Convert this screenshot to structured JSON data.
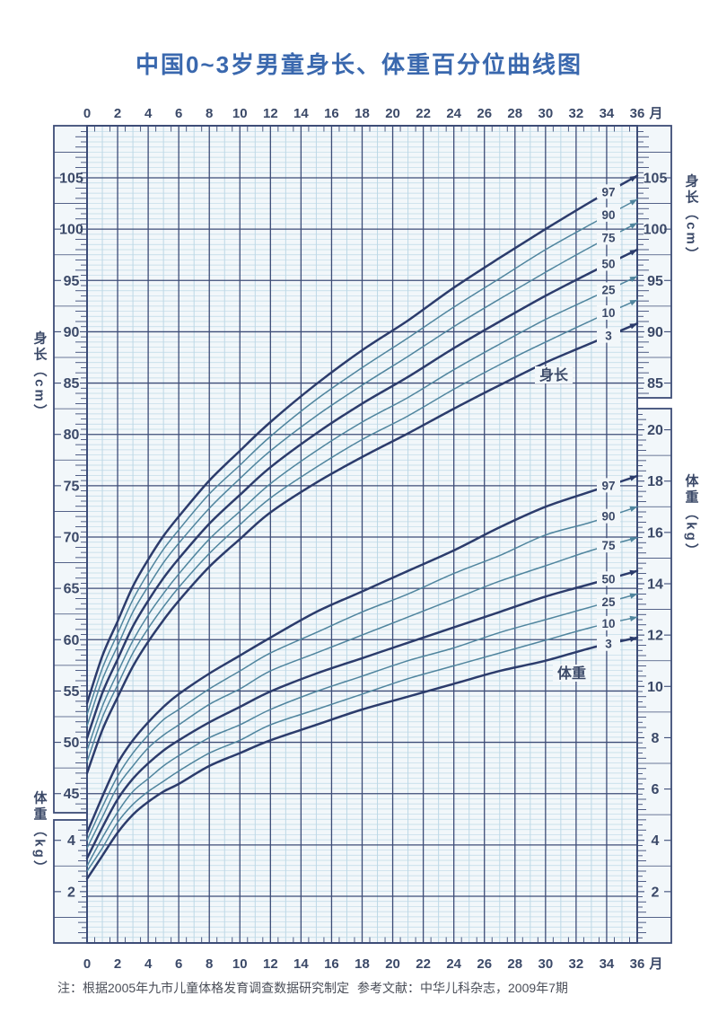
{
  "title": "中国0~3岁男童身长、体重百分位曲线图",
  "month_axis": {
    "ticks": [
      "0",
      "2",
      "4",
      "6",
      "8",
      "10",
      "12",
      "14",
      "16",
      "18",
      "20",
      "22",
      "24",
      "26",
      "28",
      "30",
      "32",
      "34",
      "36"
    ],
    "unit": "月"
  },
  "left_height_axis": {
    "title": "身长（cm）",
    "labels": [
      "105",
      "100",
      "95",
      "90",
      "85",
      "80",
      "75",
      "70",
      "65",
      "60",
      "55",
      "50",
      "45"
    ]
  },
  "left_weight_axis": {
    "title": "体重（kg）",
    "labels": [
      "4",
      "2"
    ]
  },
  "right_height_axis": {
    "title": "身长（cm）",
    "labels": [
      "105",
      "100",
      "95",
      "90",
      "85"
    ]
  },
  "right_weight_axis": {
    "title": "体重（kg）",
    "labels": [
      "20",
      "18",
      "16",
      "14",
      "12",
      "10",
      "8",
      "6",
      "4",
      "2"
    ]
  },
  "percentile_labels": [
    "97",
    "90",
    "75",
    "50",
    "25",
    "10",
    "3"
  ],
  "curve_annotations": {
    "height": "身长",
    "weight": "体重"
  },
  "notes": {
    "source": "注：根据2005年九市儿童体格发育调查数据研究制定",
    "reference": "参考文献：中华儿科杂志，2009年7期"
  },
  "colors": {
    "title": "#3a68ae",
    "text": "#3b4968",
    "footnote": "#4a4e58",
    "plot_bg": "#f2f7fa",
    "grid_fine": "#bdd8e6",
    "grid_major": "#3d4c77",
    "curve_dark": "#2c3c6c",
    "curve_light": "#50859e"
  },
  "chart_data": [
    {
      "type": "line",
      "title": "身长百分位曲线",
      "group": "height",
      "unit": "cm",
      "ylabel": "身长（cm）",
      "xlabel": "月",
      "ylim": [
        43,
        110
      ],
      "x_months": [
        0,
        1,
        2,
        3,
        4,
        5,
        6,
        8,
        10,
        12,
        15,
        18,
        21,
        24,
        27,
        30,
        33,
        36
      ],
      "series": [
        {
          "name": "97",
          "values": [
            53.8,
            58.4,
            61.8,
            65.2,
            67.8,
            70.1,
            72.0,
            75.5,
            78.4,
            81.2,
            84.9,
            88.2,
            91.1,
            94.3,
            97.2,
            100.0,
            102.7,
            105.2
          ]
        },
        {
          "name": "90",
          "values": [
            52.7,
            57.2,
            60.6,
            63.9,
            66.5,
            68.8,
            70.7,
            74.2,
            77.0,
            79.8,
            83.4,
            86.5,
            89.4,
            92.4,
            95.2,
            98.0,
            100.5,
            102.9
          ]
        },
        {
          "name": "75",
          "values": [
            51.6,
            56.1,
            59.4,
            62.7,
            65.2,
            67.5,
            69.4,
            72.8,
            75.7,
            78.4,
            81.8,
            84.8,
            87.6,
            90.5,
            93.2,
            95.8,
            98.3,
            100.6
          ]
        },
        {
          "name": "50",
          "values": [
            50.4,
            54.8,
            58.1,
            61.3,
            63.8,
            66.0,
            67.9,
            71.3,
            74.1,
            76.8,
            80.1,
            83.0,
            85.6,
            88.4,
            91.0,
            93.5,
            95.8,
            98.0
          ]
        },
        {
          "name": "25",
          "values": [
            49.2,
            53.5,
            56.8,
            59.9,
            62.4,
            64.5,
            66.4,
            69.8,
            72.5,
            75.2,
            78.4,
            81.2,
            83.6,
            86.3,
            88.8,
            91.2,
            93.3,
            95.4
          ]
        },
        {
          "name": "10",
          "values": [
            48.1,
            52.4,
            55.6,
            58.7,
            61.1,
            63.2,
            65.1,
            68.4,
            71.2,
            73.8,
            76.8,
            79.5,
            81.8,
            84.4,
            86.8,
            89.0,
            91.1,
            93.1
          ]
        },
        {
          "name": "3",
          "values": [
            47.0,
            51.2,
            54.4,
            57.4,
            59.8,
            61.9,
            63.8,
            67.1,
            69.8,
            72.4,
            75.3,
            77.8,
            80.1,
            82.5,
            84.8,
            87.0,
            88.9,
            90.8
          ]
        }
      ]
    },
    {
      "type": "line",
      "title": "体重百分位曲线",
      "group": "weight",
      "unit": "kg",
      "ylabel": "体重（kg）",
      "xlabel": "月",
      "ylim": [
        0,
        21
      ],
      "x_months": [
        0,
        1,
        2,
        3,
        4,
        5,
        6,
        8,
        10,
        12,
        15,
        18,
        21,
        24,
        27,
        30,
        33,
        36
      ],
      "series": [
        {
          "name": "97",
          "values": [
            4.3,
            5.7,
            7.0,
            7.9,
            8.6,
            9.2,
            9.7,
            10.5,
            11.2,
            11.9,
            12.9,
            13.7,
            14.5,
            15.3,
            16.2,
            17.0,
            17.6,
            18.2
          ]
        },
        {
          "name": "90",
          "values": [
            4.0,
            5.3,
            6.5,
            7.4,
            8.1,
            8.7,
            9.1,
            9.9,
            10.6,
            11.3,
            12.1,
            12.9,
            13.6,
            14.4,
            15.1,
            15.9,
            16.4,
            17.0
          ]
        },
        {
          "name": "75",
          "values": [
            3.7,
            4.9,
            6.1,
            6.9,
            7.6,
            8.1,
            8.5,
            9.3,
            9.9,
            10.6,
            11.3,
            12.0,
            12.7,
            13.4,
            14.1,
            14.7,
            15.3,
            15.8
          ]
        },
        {
          "name": "50",
          "values": [
            3.3,
            4.5,
            5.6,
            6.4,
            7.0,
            7.5,
            7.9,
            8.6,
            9.2,
            9.8,
            10.5,
            11.1,
            11.7,
            12.3,
            12.9,
            13.5,
            14.0,
            14.5
          ]
        },
        {
          "name": "25",
          "values": [
            3.0,
            4.1,
            5.1,
            5.9,
            6.4,
            6.9,
            7.3,
            8.0,
            8.5,
            9.1,
            9.8,
            10.4,
            11.0,
            11.5,
            12.1,
            12.6,
            13.1,
            13.6
          ]
        },
        {
          "name": "10",
          "values": [
            2.8,
            3.7,
            4.7,
            5.4,
            5.9,
            6.3,
            6.7,
            7.4,
            7.9,
            8.5,
            9.1,
            9.7,
            10.3,
            10.8,
            11.3,
            11.8,
            12.3,
            12.7
          ]
        },
        {
          "name": "3",
          "values": [
            2.5,
            3.4,
            4.3,
            5.0,
            5.5,
            5.9,
            6.2,
            6.9,
            7.4,
            7.9,
            8.5,
            9.1,
            9.6,
            10.1,
            10.6,
            11.0,
            11.5,
            11.9
          ]
        }
      ]
    }
  ]
}
